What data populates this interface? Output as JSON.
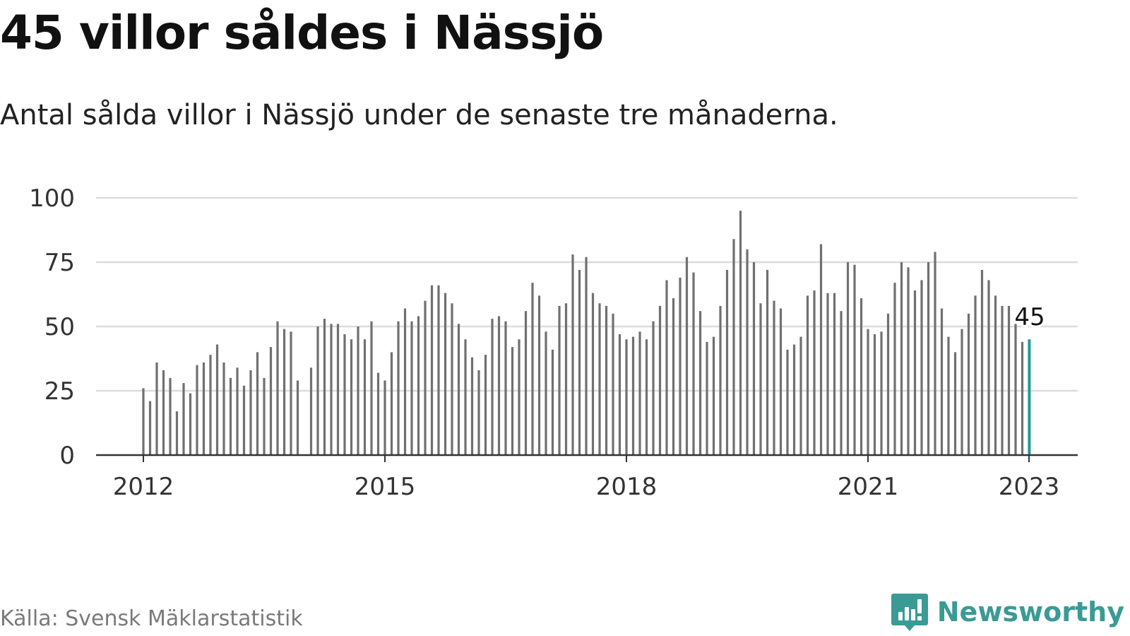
{
  "title": "45 villor såldes i Nässjö",
  "subtitle": "Antal sålda villor i Nässjö under de senaste tre månaderna.",
  "source": "Källa: Svensk Mäklarstatistik",
  "brand": {
    "name": "Newsworthy",
    "icon": "newsworthy-logo-icon"
  },
  "colors": {
    "bar": "#707070",
    "highlight": "#1f9b95",
    "grid": "#dcdcdc",
    "axis": "#333333",
    "text": "#333333"
  },
  "chart_data": {
    "type": "bar",
    "x_start": "2012-01",
    "x_frequency": "monthly",
    "values": [
      26,
      21,
      36,
      33,
      30,
      17,
      28,
      24,
      35,
      36,
      39,
      43,
      36,
      30,
      34,
      27,
      33,
      40,
      30,
      42,
      52,
      49,
      48,
      29,
      null,
      34,
      50,
      53,
      51,
      51,
      47,
      45,
      50,
      45,
      52,
      32,
      29,
      40,
      52,
      57,
      52,
      54,
      60,
      66,
      66,
      63,
      59,
      51,
      45,
      38,
      33,
      39,
      53,
      54,
      52,
      42,
      45,
      56,
      67,
      62,
      48,
      41,
      58,
      59,
      78,
      72,
      77,
      63,
      59,
      58,
      55,
      47,
      45,
      46,
      48,
      45,
      52,
      58,
      68,
      61,
      69,
      77,
      71,
      56,
      44,
      46,
      58,
      72,
      84,
      95,
      80,
      75,
      59,
      72,
      60,
      57,
      41,
      43,
      46,
      62,
      64,
      82,
      63,
      63,
      56,
      75,
      74,
      61,
      49,
      47,
      48,
      55,
      67,
      75,
      73,
      64,
      68,
      75,
      79,
      57,
      46,
      40,
      49,
      55,
      62,
      72,
      68,
      62,
      58,
      58,
      51,
      44,
      45
    ],
    "x_ticks": [
      "2012",
      "2015",
      "2018",
      "2021",
      "2023"
    ],
    "y_ticks": [
      0,
      25,
      50,
      75,
      100
    ],
    "ylim": [
      0,
      100
    ],
    "highlight": {
      "label": "45",
      "value": 45,
      "date": "2023-01"
    },
    "grid": "horizontal",
    "legend": "none"
  }
}
